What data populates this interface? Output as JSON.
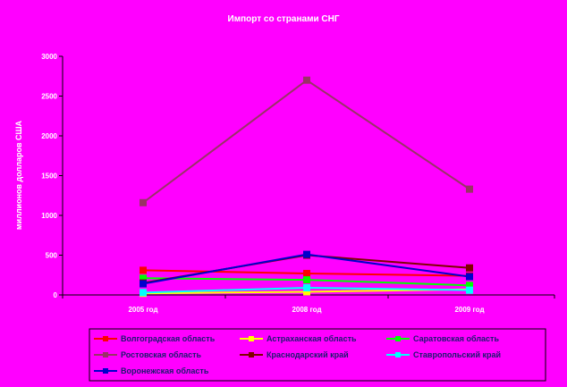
{
  "chart_data": {
    "type": "line",
    "title": "Импорт со странами СНГ",
    "xlabel": "",
    "ylabel": "миллионов долларов США",
    "categories": [
      "2005 год",
      "2008 год",
      "2009 год"
    ],
    "ylim": [
      0,
      3000
    ],
    "yticks": [
      0,
      500,
      1000,
      1500,
      2000,
      2500,
      3000
    ],
    "grid": false,
    "legend": "bottom",
    "series": [
      {
        "name": "Волгоградская область",
        "values": [
          310,
          270,
          240
        ],
        "color": "#ff0000"
      },
      {
        "name": "Астраханская область",
        "values": [
          20,
          40,
          70
        ],
        "color": "#ffff00"
      },
      {
        "name": "Саратовская область",
        "values": [
          210,
          190,
          120
        ],
        "color": "#00ff00"
      },
      {
        "name": "Ростовская область",
        "values": [
          1160,
          2700,
          1330
        ],
        "color": "#993366"
      },
      {
        "name": "Краснодарский край",
        "values": [
          150,
          500,
          340
        ],
        "color": "#800000"
      },
      {
        "name": "Ставропольский край",
        "values": [
          30,
          90,
          60
        ],
        "color": "#00ffff"
      },
      {
        "name": "Воронежская область",
        "values": [
          140,
          510,
          230
        ],
        "color": "#0000cc"
      }
    ]
  }
}
